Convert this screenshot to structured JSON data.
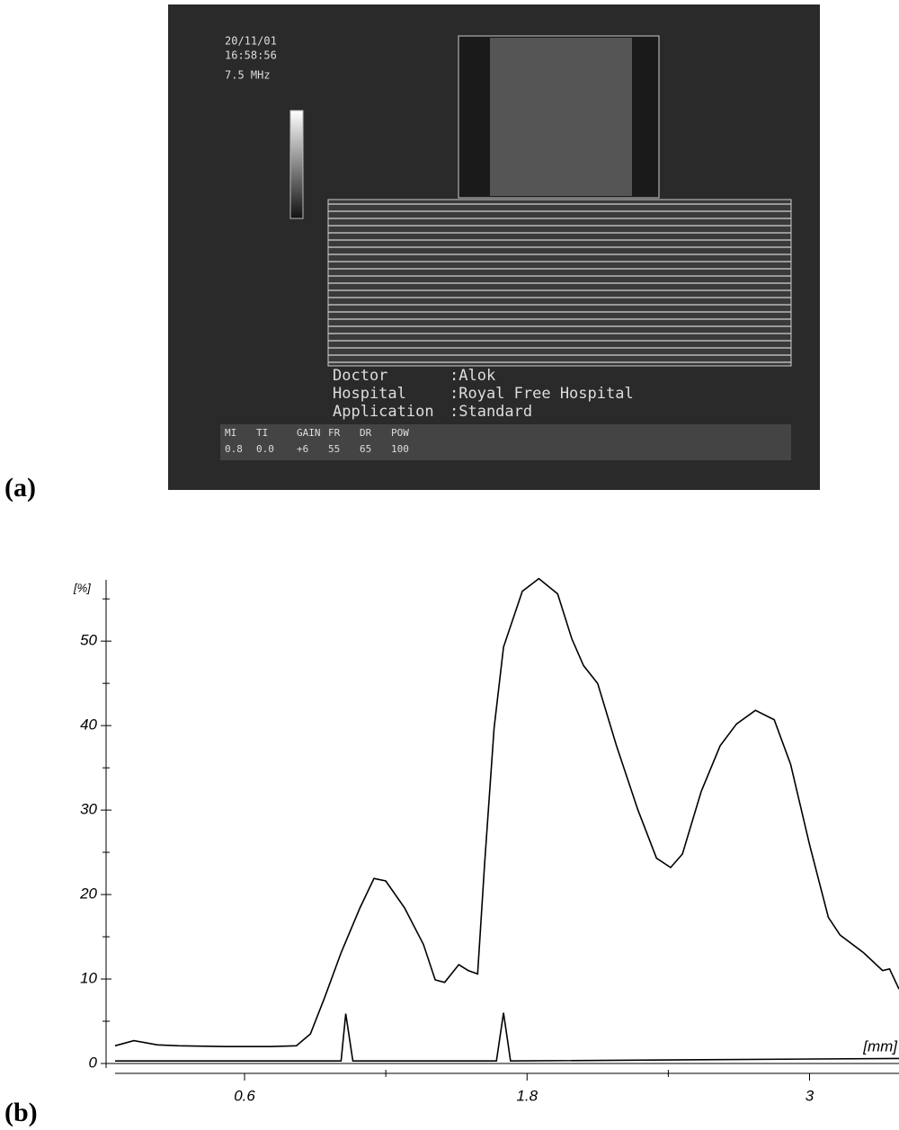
{
  "panel_a": {
    "label": "(a)",
    "screen": {
      "date": "20/11/01",
      "time": "16:58:56",
      "frequency": "7.5 MHz",
      "info_rows": [
        [
          "Doctor",
          ":Alok"
        ],
        [
          "Hospital",
          ":Royal Free  Hospital"
        ],
        [
          "Application",
          ":Standard"
        ]
      ],
      "status": {
        "headers": [
          "MI",
          "TI",
          "GAIN",
          "FR",
          "DR",
          "POW"
        ],
        "values": [
          "0.8",
          "0.0",
          "+6",
          "55",
          "65",
          "100"
        ]
      }
    }
  },
  "chart_data": {
    "type": "line",
    "panel_label": "(b)",
    "y_label": "[%]",
    "x_label": "[mm]",
    "xlim": [
      0.05,
      3.38
    ],
    "ylim": [
      0,
      58
    ],
    "xticks": [
      0.6,
      1.8,
      3.0
    ],
    "xminorticks": [
      1.2,
      2.4
    ],
    "yticks": [
      0,
      10,
      20,
      30,
      40,
      50
    ],
    "yminorticks": [
      5,
      15,
      25,
      35,
      45,
      55
    ],
    "series": [
      {
        "color": "#000000",
        "x": [
          0.05,
          0.13,
          0.23,
          0.32,
          0.52,
          0.71,
          0.82,
          0.88,
          0.94,
          1.01,
          1.09,
          1.15,
          1.2,
          1.28,
          1.36,
          1.41,
          1.45,
          1.51,
          1.55,
          1.59,
          1.62,
          1.66,
          1.7,
          1.78,
          1.85,
          1.93,
          1.99,
          2.04,
          2.1,
          2.18,
          2.27,
          2.35,
          2.41,
          2.46,
          2.54,
          2.62,
          2.69,
          2.77,
          2.85,
          2.92,
          3.0,
          3.08,
          3.13,
          3.23,
          3.31,
          3.34,
          3.38
        ],
        "values": [
          2.1,
          2.7,
          2.2,
          2.1,
          2.0,
          2.0,
          2.1,
          3.5,
          7.8,
          13.1,
          18.4,
          21.9,
          21.6,
          18.4,
          14.1,
          9.9,
          9.6,
          11.7,
          11.0,
          10.6,
          23.7,
          39.7,
          49.3,
          55.9,
          57.4,
          55.6,
          50.3,
          47.1,
          45.0,
          37.6,
          30.1,
          24.3,
          23.2,
          24.8,
          32.2,
          37.6,
          40.2,
          41.8,
          40.7,
          35.4,
          25.9,
          17.3,
          15.2,
          13.1,
          11.0,
          11.2,
          8.8
        ]
      },
      {
        "color": "#000000",
        "x": [
          0.05,
          1.01,
          1.03,
          1.06,
          1.67,
          1.7,
          1.73,
          3.38
        ],
        "values": [
          0.3,
          0.3,
          5.9,
          0.3,
          0.3,
          6.0,
          0.3,
          0.6
        ]
      }
    ]
  }
}
